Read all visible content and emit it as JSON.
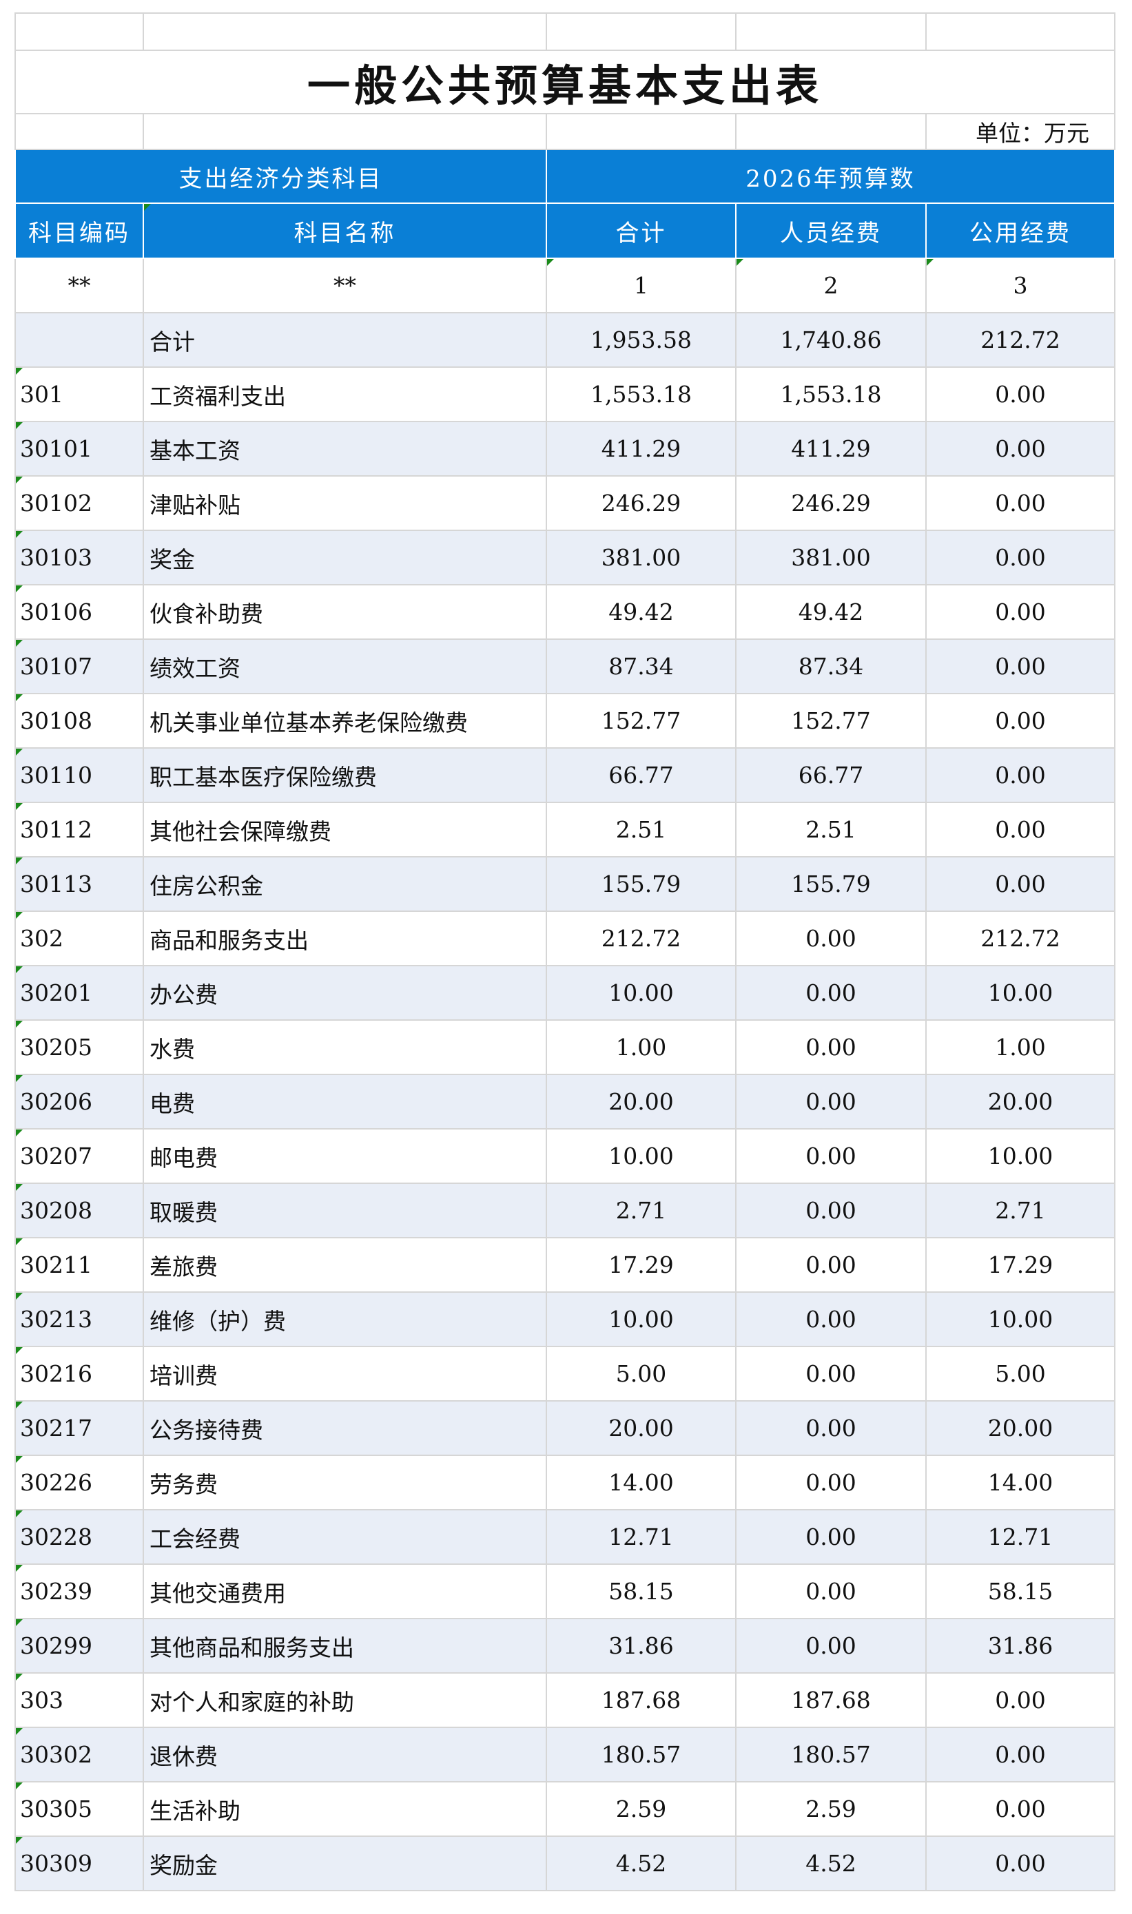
{
  "title": "一般公共预算基本支出表",
  "unit": "单位：万元",
  "header": {
    "group_left": "支出经济分类科目",
    "group_right": "2026年预算数",
    "code": "科目编码",
    "name": "科目名称",
    "total": "合计",
    "personnel": "人员经费",
    "public": "公用经费"
  },
  "index_row": [
    "**",
    "**",
    "1",
    "2",
    "3"
  ],
  "total_row": {
    "code": "",
    "name": "合计",
    "total": "1,953.58",
    "personnel": "1,740.86",
    "public": "212.72"
  },
  "rows": [
    {
      "code": "301",
      "name": "工资福利支出",
      "total": "1,553.18",
      "personnel": "1,553.18",
      "public": "0.00"
    },
    {
      "code": "30101",
      "name": "基本工资",
      "total": "411.29",
      "personnel": "411.29",
      "public": "0.00"
    },
    {
      "code": "30102",
      "name": "津贴补贴",
      "total": "246.29",
      "personnel": "246.29",
      "public": "0.00"
    },
    {
      "code": "30103",
      "name": "奖金",
      "total": "381.00",
      "personnel": "381.00",
      "public": "0.00"
    },
    {
      "code": "30106",
      "name": "伙食补助费",
      "total": "49.42",
      "personnel": "49.42",
      "public": "0.00"
    },
    {
      "code": "30107",
      "name": "绩效工资",
      "total": "87.34",
      "personnel": "87.34",
      "public": "0.00"
    },
    {
      "code": "30108",
      "name": "机关事业单位基本养老保险缴费",
      "total": "152.77",
      "personnel": "152.77",
      "public": "0.00"
    },
    {
      "code": "30110",
      "name": "职工基本医疗保险缴费",
      "total": "66.77",
      "personnel": "66.77",
      "public": "0.00"
    },
    {
      "code": "30112",
      "name": "其他社会保障缴费",
      "total": "2.51",
      "personnel": "2.51",
      "public": "0.00"
    },
    {
      "code": "30113",
      "name": "住房公积金",
      "total": "155.79",
      "personnel": "155.79",
      "public": "0.00"
    },
    {
      "code": "302",
      "name": "商品和服务支出",
      "total": "212.72",
      "personnel": "0.00",
      "public": "212.72"
    },
    {
      "code": "30201",
      "name": "办公费",
      "total": "10.00",
      "personnel": "0.00",
      "public": "10.00"
    },
    {
      "code": "30205",
      "name": "水费",
      "total": "1.00",
      "personnel": "0.00",
      "public": "1.00"
    },
    {
      "code": "30206",
      "name": "电费",
      "total": "20.00",
      "personnel": "0.00",
      "public": "20.00"
    },
    {
      "code": "30207",
      "name": "邮电费",
      "total": "10.00",
      "personnel": "0.00",
      "public": "10.00"
    },
    {
      "code": "30208",
      "name": "取暖费",
      "total": "2.71",
      "personnel": "0.00",
      "public": "2.71"
    },
    {
      "code": "30211",
      "name": "差旅费",
      "total": "17.29",
      "personnel": "0.00",
      "public": "17.29"
    },
    {
      "code": "30213",
      "name": "维修（护）费",
      "total": "10.00",
      "personnel": "0.00",
      "public": "10.00"
    },
    {
      "code": "30216",
      "name": "培训费",
      "total": "5.00",
      "personnel": "0.00",
      "public": "5.00"
    },
    {
      "code": "30217",
      "name": "公务接待费",
      "total": "20.00",
      "personnel": "0.00",
      "public": "20.00"
    },
    {
      "code": "30226",
      "name": "劳务费",
      "total": "14.00",
      "personnel": "0.00",
      "public": "14.00"
    },
    {
      "code": "30228",
      "name": "工会经费",
      "total": "12.71",
      "personnel": "0.00",
      "public": "12.71"
    },
    {
      "code": "30239",
      "name": "其他交通费用",
      "total": "58.15",
      "personnel": "0.00",
      "public": "58.15"
    },
    {
      "code": "30299",
      "name": "其他商品和服务支出",
      "total": "31.86",
      "personnel": "0.00",
      "public": "31.86"
    },
    {
      "code": "303",
      "name": "对个人和家庭的补助",
      "total": "187.68",
      "personnel": "187.68",
      "public": "0.00"
    },
    {
      "code": "30302",
      "name": "退休费",
      "total": "180.57",
      "personnel": "180.57",
      "public": "0.00"
    },
    {
      "code": "30305",
      "name": "生活补助",
      "total": "2.59",
      "personnel": "2.59",
      "public": "0.00"
    },
    {
      "code": "30309",
      "name": "奖励金",
      "total": "4.52",
      "personnel": "4.52",
      "public": "0.00"
    }
  ],
  "colors": {
    "header_bg": "#0a7fd6",
    "alt_row_bg": "#e9eef7",
    "marker": "#1a8a1a"
  }
}
